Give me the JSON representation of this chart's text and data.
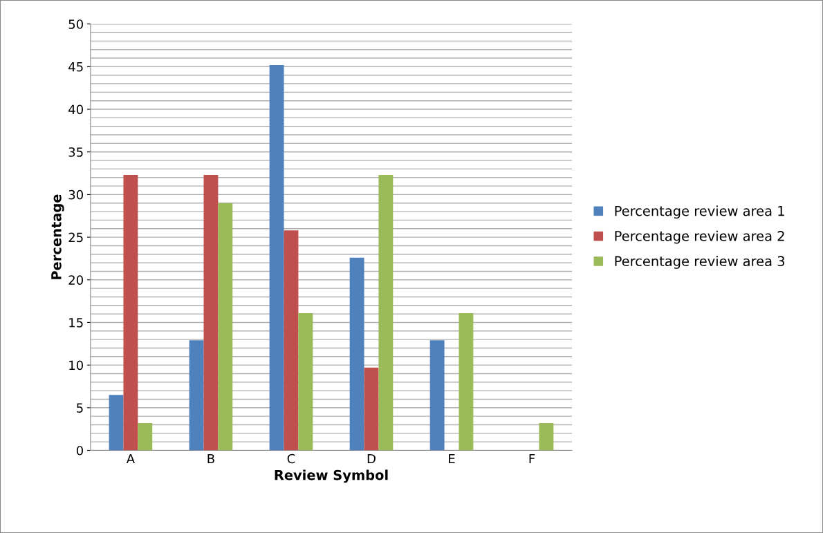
{
  "chart_data": {
    "type": "bar",
    "xlabel": "Review Symbol",
    "ylabel": "Percentage",
    "categories": [
      "A",
      "B",
      "C",
      "D",
      "E",
      "F"
    ],
    "series": [
      {
        "name": "Percentage review area 1",
        "color": "#4f81bd",
        "values": [
          6.5,
          12.9,
          45.2,
          22.6,
          12.9,
          0
        ]
      },
      {
        "name": "Percentage review area 2",
        "color": "#c0504d",
        "values": [
          32.3,
          32.3,
          25.8,
          9.7,
          0,
          0
        ]
      },
      {
        "name": "Percentage review area 3",
        "color": "#9bbb59",
        "values": [
          3.2,
          29.0,
          16.1,
          32.3,
          16.1,
          3.2
        ]
      }
    ],
    "ylim": [
      0,
      50
    ],
    "yticks": [
      0,
      {
        "value": 1,
        "label": null
      },
      {
        "value": 2,
        "label": null
      },
      {
        "value": 3,
        "label": null
      },
      {
        "value": 4,
        "label": null
      },
      5,
      {
        "value": 6,
        "label": null
      },
      {
        "value": 7,
        "label": null
      },
      {
        "value": 8,
        "label": null
      },
      {
        "value": 9,
        "label": null
      },
      10,
      {
        "value": 11,
        "label": null
      },
      {
        "value": 12,
        "label": null
      },
      {
        "value": 13,
        "label": null
      },
      {
        "value": 14,
        "label": null
      },
      15,
      {
        "value": 16,
        "label": null
      },
      {
        "value": 17,
        "label": null
      },
      {
        "value": 18,
        "label": null
      },
      {
        "value": 19,
        "label": null
      },
      20,
      {
        "value": 21,
        "label": null
      },
      {
        "value": 22,
        "label": null
      },
      {
        "value": 23,
        "label": null
      },
      {
        "value": 24,
        "label": null
      },
      25,
      {
        "value": 26,
        "label": null
      },
      {
        "value": 27,
        "label": null
      },
      {
        "value": 28,
        "label": null
      },
      {
        "value": 29,
        "label": null
      },
      30,
      {
        "value": 31,
        "label": null
      },
      {
        "value": 32,
        "label": null
      },
      {
        "value": 33,
        "label": null
      },
      {
        "value": 34,
        "label": null
      },
      35,
      {
        "value": 36,
        "label": null
      },
      {
        "value": 37,
        "label": null
      },
      {
        "value": 38,
        "label": null
      },
      {
        "value": 39,
        "label": null
      },
      40,
      {
        "value": 41,
        "label": null
      },
      {
        "value": 42,
        "label": null
      },
      {
        "value": 43,
        "label": null
      },
      {
        "value": 44,
        "label": null
      },
      45,
      {
        "value": 46,
        "label": null
      },
      {
        "value": 47,
        "label": null
      },
      {
        "value": 48,
        "label": null
      },
      {
        "value": 49,
        "label": null
      },
      50
    ],
    "grid": "y",
    "legend": "right"
  }
}
